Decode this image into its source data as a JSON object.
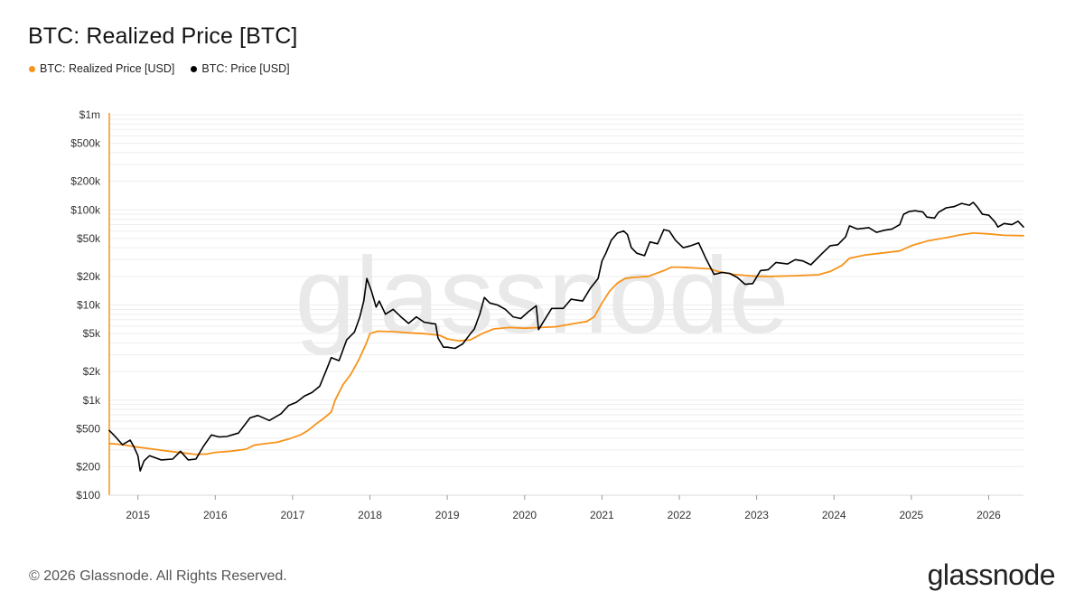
{
  "title": "BTC: Realized Price [BTC]",
  "legend": [
    {
      "label": "BTC: Realized Price [USD]",
      "color": "#F7931A"
    },
    {
      "label": "BTC: Price [USD]",
      "color": "#000000"
    }
  ],
  "footer": "© 2026 Glassnode. All Rights Reserved.",
  "brand": "glassnode",
  "watermark": "glassnode",
  "chart_data": {
    "type": "line",
    "y_scale": "log",
    "ylim": [
      100,
      1000000
    ],
    "xlim": [
      2014.63,
      2026.45
    ],
    "y_ticks": [
      {
        "value": 100,
        "label": "$100"
      },
      {
        "value": 200,
        "label": "$200"
      },
      {
        "value": 500,
        "label": "$500"
      },
      {
        "value": 1000,
        "label": "$1k"
      },
      {
        "value": 2000,
        "label": "$2k"
      },
      {
        "value": 5000,
        "label": "$5k"
      },
      {
        "value": 10000,
        "label": "$10k"
      },
      {
        "value": 20000,
        "label": "$20k"
      },
      {
        "value": 50000,
        "label": "$50k"
      },
      {
        "value": 100000,
        "label": "$100k"
      },
      {
        "value": 200000,
        "label": "$200k"
      },
      {
        "value": 500000,
        "label": "$500k"
      },
      {
        "value": 1000000,
        "label": "$1m"
      }
    ],
    "x_ticks": [
      {
        "value": 2015,
        "label": "2015"
      },
      {
        "value": 2016,
        "label": "2016"
      },
      {
        "value": 2017,
        "label": "2017"
      },
      {
        "value": 2018,
        "label": "2018"
      },
      {
        "value": 2019,
        "label": "2019"
      },
      {
        "value": 2020,
        "label": "2020"
      },
      {
        "value": 2021,
        "label": "2021"
      },
      {
        "value": 2022,
        "label": "2022"
      },
      {
        "value": 2023,
        "label": "2023"
      },
      {
        "value": 2024,
        "label": "2024"
      },
      {
        "value": 2025,
        "label": "2025"
      },
      {
        "value": 2026,
        "label": "2026"
      }
    ],
    "grid": true,
    "legend_position": "top-left",
    "series": [
      {
        "name": "BTC: Realized Price [USD]",
        "color": "#F7931A",
        "points": [
          [
            2014.63,
            350
          ],
          [
            2014.8,
            340
          ],
          [
            2015.0,
            320
          ],
          [
            2015.2,
            305
          ],
          [
            2015.4,
            290
          ],
          [
            2015.6,
            278
          ],
          [
            2015.75,
            268
          ],
          [
            2015.9,
            272
          ],
          [
            2016.0,
            282
          ],
          [
            2016.2,
            290
          ],
          [
            2016.4,
            305
          ],
          [
            2016.5,
            335
          ],
          [
            2016.6,
            345
          ],
          [
            2016.8,
            360
          ],
          [
            2016.95,
            390
          ],
          [
            2017.1,
            430
          ],
          [
            2017.2,
            480
          ],
          [
            2017.3,
            560
          ],
          [
            2017.4,
            640
          ],
          [
            2017.5,
            750
          ],
          [
            2017.55,
            1000
          ],
          [
            2017.65,
            1450
          ],
          [
            2017.75,
            1850
          ],
          [
            2017.85,
            2600
          ],
          [
            2017.95,
            3900
          ],
          [
            2018.0,
            5000
          ],
          [
            2018.1,
            5300
          ],
          [
            2018.3,
            5250
          ],
          [
            2018.5,
            5100
          ],
          [
            2018.7,
            5000
          ],
          [
            2018.9,
            4800
          ],
          [
            2019.0,
            4400
          ],
          [
            2019.15,
            4200
          ],
          [
            2019.3,
            4300
          ],
          [
            2019.45,
            5000
          ],
          [
            2019.6,
            5600
          ],
          [
            2019.8,
            5800
          ],
          [
            2020.0,
            5700
          ],
          [
            2020.2,
            5800
          ],
          [
            2020.4,
            5900
          ],
          [
            2020.6,
            6300
          ],
          [
            2020.8,
            6700
          ],
          [
            2020.9,
            7500
          ],
          [
            2021.0,
            10500
          ],
          [
            2021.1,
            14000
          ],
          [
            2021.2,
            17000
          ],
          [
            2021.3,
            19000
          ],
          [
            2021.4,
            19500
          ],
          [
            2021.6,
            20000
          ],
          [
            2021.8,
            23000
          ],
          [
            2021.9,
            25000
          ],
          [
            2022.0,
            25000
          ],
          [
            2022.2,
            24500
          ],
          [
            2022.4,
            24000
          ],
          [
            2022.5,
            22500
          ],
          [
            2022.7,
            21000
          ],
          [
            2022.9,
            20300
          ],
          [
            2023.0,
            20000
          ],
          [
            2023.2,
            20000
          ],
          [
            2023.5,
            20300
          ],
          [
            2023.8,
            20800
          ],
          [
            2023.95,
            22500
          ],
          [
            2024.1,
            26000
          ],
          [
            2024.2,
            31000
          ],
          [
            2024.4,
            33500
          ],
          [
            2024.6,
            35000
          ],
          [
            2024.85,
            37000
          ],
          [
            2025.0,
            42000
          ],
          [
            2025.2,
            47000
          ],
          [
            2025.45,
            51000
          ],
          [
            2025.65,
            55000
          ],
          [
            2025.8,
            57000
          ],
          [
            2026.0,
            56000
          ],
          [
            2026.2,
            54000
          ],
          [
            2026.45,
            53500
          ]
        ]
      },
      {
        "name": "BTC: Price [USD]",
        "color": "#000000",
        "points": [
          [
            2014.63,
            480
          ],
          [
            2014.7,
            420
          ],
          [
            2014.8,
            340
          ],
          [
            2014.9,
            380
          ],
          [
            2014.95,
            320
          ],
          [
            2015.0,
            260
          ],
          [
            2015.03,
            180
          ],
          [
            2015.08,
            230
          ],
          [
            2015.15,
            260
          ],
          [
            2015.3,
            235
          ],
          [
            2015.45,
            240
          ],
          [
            2015.55,
            290
          ],
          [
            2015.65,
            235
          ],
          [
            2015.75,
            240
          ],
          [
            2015.85,
            330
          ],
          [
            2015.95,
            430
          ],
          [
            2016.05,
            410
          ],
          [
            2016.15,
            415
          ],
          [
            2016.3,
            450
          ],
          [
            2016.45,
            650
          ],
          [
            2016.55,
            690
          ],
          [
            2016.7,
            610
          ],
          [
            2016.85,
            720
          ],
          [
            2016.95,
            880
          ],
          [
            2017.05,
            950
          ],
          [
            2017.15,
            1100
          ],
          [
            2017.25,
            1200
          ],
          [
            2017.35,
            1400
          ],
          [
            2017.45,
            2200
          ],
          [
            2017.5,
            2800
          ],
          [
            2017.6,
            2600
          ],
          [
            2017.7,
            4300
          ],
          [
            2017.8,
            5200
          ],
          [
            2017.87,
            7500
          ],
          [
            2017.92,
            11000
          ],
          [
            2017.96,
            19000
          ],
          [
            2018.02,
            14000
          ],
          [
            2018.08,
            9500
          ],
          [
            2018.12,
            11000
          ],
          [
            2018.2,
            8000
          ],
          [
            2018.3,
            9000
          ],
          [
            2018.4,
            7500
          ],
          [
            2018.5,
            6400
          ],
          [
            2018.6,
            7500
          ],
          [
            2018.7,
            6600
          ],
          [
            2018.8,
            6400
          ],
          [
            2018.85,
            6300
          ],
          [
            2018.88,
            4500
          ],
          [
            2018.95,
            3600
          ],
          [
            2019.0,
            3600
          ],
          [
            2019.1,
            3500
          ],
          [
            2019.2,
            3900
          ],
          [
            2019.3,
            5000
          ],
          [
            2019.35,
            5600
          ],
          [
            2019.42,
            8000
          ],
          [
            2019.48,
            12000
          ],
          [
            2019.55,
            10500
          ],
          [
            2019.65,
            10000
          ],
          [
            2019.75,
            9000
          ],
          [
            2019.85,
            7500
          ],
          [
            2019.95,
            7200
          ],
          [
            2020.05,
            8500
          ],
          [
            2020.15,
            9800
          ],
          [
            2020.18,
            5500
          ],
          [
            2020.25,
            6800
          ],
          [
            2020.35,
            9200
          ],
          [
            2020.5,
            9200
          ],
          [
            2020.6,
            11500
          ],
          [
            2020.75,
            11000
          ],
          [
            2020.85,
            15000
          ],
          [
            2020.95,
            19000
          ],
          [
            2021.0,
            29000
          ],
          [
            2021.05,
            35000
          ],
          [
            2021.12,
            48000
          ],
          [
            2021.2,
            57000
          ],
          [
            2021.28,
            60000
          ],
          [
            2021.33,
            55000
          ],
          [
            2021.38,
            40000
          ],
          [
            2021.45,
            35000
          ],
          [
            2021.55,
            33000
          ],
          [
            2021.62,
            46000
          ],
          [
            2021.72,
            44000
          ],
          [
            2021.8,
            62000
          ],
          [
            2021.87,
            60000
          ],
          [
            2021.95,
            48000
          ],
          [
            2022.05,
            40000
          ],
          [
            2022.15,
            42000
          ],
          [
            2022.25,
            45000
          ],
          [
            2022.35,
            30000
          ],
          [
            2022.45,
            21000
          ],
          [
            2022.55,
            22000
          ],
          [
            2022.65,
            21500
          ],
          [
            2022.75,
            19500
          ],
          [
            2022.85,
            16500
          ],
          [
            2022.95,
            16800
          ],
          [
            2023.05,
            23000
          ],
          [
            2023.15,
            23500
          ],
          [
            2023.25,
            28000
          ],
          [
            2023.4,
            27000
          ],
          [
            2023.5,
            30000
          ],
          [
            2023.6,
            29000
          ],
          [
            2023.7,
            26500
          ],
          [
            2023.85,
            35000
          ],
          [
            2023.95,
            42000
          ],
          [
            2024.05,
            43000
          ],
          [
            2024.15,
            52000
          ],
          [
            2024.2,
            68000
          ],
          [
            2024.3,
            63000
          ],
          [
            2024.45,
            65000
          ],
          [
            2024.55,
            58000
          ],
          [
            2024.65,
            61000
          ],
          [
            2024.75,
            63000
          ],
          [
            2024.85,
            70000
          ],
          [
            2024.9,
            90000
          ],
          [
            2024.97,
            96000
          ],
          [
            2025.05,
            98000
          ],
          [
            2025.15,
            95000
          ],
          [
            2025.2,
            84000
          ],
          [
            2025.3,
            82000
          ],
          [
            2025.35,
            94000
          ],
          [
            2025.45,
            105000
          ],
          [
            2025.55,
            108000
          ],
          [
            2025.65,
            117000
          ],
          [
            2025.75,
            112000
          ],
          [
            2025.8,
            120000
          ],
          [
            2025.85,
            108000
          ],
          [
            2025.92,
            90000
          ],
          [
            2026.0,
            88000
          ],
          [
            2026.08,
            75000
          ],
          [
            2026.12,
            66000
          ],
          [
            2026.2,
            72000
          ],
          [
            2026.3,
            70000
          ],
          [
            2026.38,
            76000
          ],
          [
            2026.45,
            66000
          ]
        ]
      }
    ]
  }
}
